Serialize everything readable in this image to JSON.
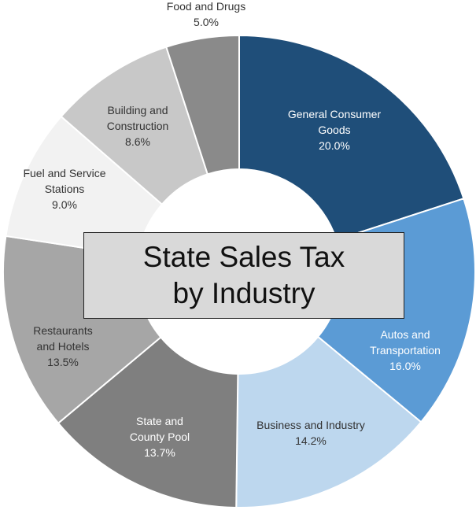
{
  "chart_data": {
    "type": "donut",
    "title": "State Sales Tax by Industry",
    "categories": [
      "General Consumer Goods",
      "Autos and Transportation",
      "Business and Industry",
      "State and County Pool",
      "Restaurants and Hotels",
      "Fuel and Service Stations",
      "Building and Construction",
      "Food and Drugs"
    ],
    "values": [
      20.0,
      16.0,
      14.2,
      13.7,
      13.5,
      9.0,
      8.6,
      5.0
    ],
    "value_labels": [
      "20.0%",
      "16.0%",
      "14.2%",
      "13.7%",
      "13.5%",
      "9.0%",
      "8.6%",
      "5.0%"
    ],
    "colors": [
      "#1f4e79",
      "#5b9bd5",
      "#bdd7ee",
      "#7f7f7f",
      "#a6a6a6",
      "#f2f2f2",
      "#c8c8c8",
      "#8a8a8a"
    ]
  }
}
